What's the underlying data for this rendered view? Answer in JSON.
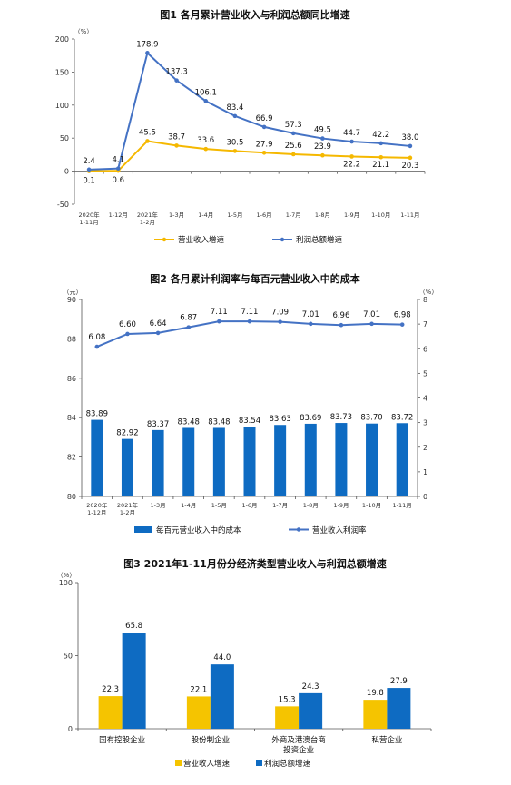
{
  "chart_data": [
    {
      "type": "line",
      "title": "图1  各月累计营业收入与利润总额同比增速",
      "unit": "（%）",
      "ylim": [
        -50,
        200
      ],
      "yticks": [
        "200",
        "150",
        "100",
        "50",
        "0",
        "-50"
      ],
      "categories": [
        [
          "2020年",
          "1-11月"
        ],
        [
          "1-12月"
        ],
        [
          "2021年",
          "1-2月"
        ],
        [
          "1-3月"
        ],
        [
          "1-4月"
        ],
        [
          "1-5月"
        ],
        [
          "1-6月"
        ],
        [
          "1-7月"
        ],
        [
          "1-8月"
        ],
        [
          "1-9月"
        ],
        [
          "1-10月"
        ],
        [
          "1-11月"
        ]
      ],
      "series": [
        {
          "name": "营业收入增速",
          "color": "#F5B800",
          "values": [
            0.1,
            0.6,
            45.5,
            38.7,
            33.6,
            30.5,
            27.9,
            25.6,
            23.9,
            22.2,
            21.1,
            20.3
          ],
          "labels": [
            "0.1",
            "0.6",
            "45.5",
            "38.7",
            "33.6",
            "30.5",
            "27.9",
            "25.6",
            "23.9",
            "22.2",
            "21.1",
            "20.3"
          ]
        },
        {
          "name": "利润总额增速",
          "color": "#4472C4",
          "values": [
            2.4,
            4.1,
            178.9,
            137.3,
            106.1,
            83.4,
            66.9,
            57.3,
            49.5,
            44.7,
            42.2,
            38.0
          ],
          "labels": [
            "2.4",
            "4.1",
            "178.9",
            "137.3",
            "106.1",
            "83.4",
            "66.9",
            "57.3",
            "49.5",
            "44.7",
            "42.2",
            "38.0"
          ]
        }
      ]
    },
    {
      "type": "bar+line",
      "title": "图2  各月累计利润率与每百元营业收入中的成本",
      "left_unit": "（元）",
      "right_unit": "（%）",
      "left_ylim": [
        80,
        90
      ],
      "left_yticks": [
        "90",
        "88",
        "86",
        "84",
        "82",
        "80"
      ],
      "right_ylim": [
        0,
        8
      ],
      "right_yticks": [
        "8",
        "7",
        "6",
        "5",
        "4",
        "3",
        "2",
        "1",
        "0"
      ],
      "categories": [
        [
          "2020年",
          "1-12月"
        ],
        [
          "2021年",
          "1-2月"
        ],
        [
          "1-3月"
        ],
        [
          "1-4月"
        ],
        [
          "1-5月"
        ],
        [
          "1-6月"
        ],
        [
          "1-7月"
        ],
        [
          "1-8月"
        ],
        [
          "1-9月"
        ],
        [
          "1-10月"
        ],
        [
          "1-11月"
        ]
      ],
      "bar_series": {
        "name": "每百元营业收入中的成本",
        "color": "#0E6BC2",
        "values": [
          83.89,
          82.92,
          83.37,
          83.48,
          83.48,
          83.54,
          83.63,
          83.69,
          83.73,
          83.7,
          83.72
        ],
        "labels": [
          "83.89",
          "82.92",
          "83.37",
          "83.48",
          "83.48",
          "83.54",
          "83.63",
          "83.69",
          "83.73",
          "83.70",
          "83.72"
        ]
      },
      "line_series": {
        "name": "营业收入利润率",
        "color": "#4472C4",
        "values": [
          6.08,
          6.6,
          6.64,
          6.87,
          7.11,
          7.11,
          7.09,
          7.01,
          6.96,
          7.01,
          6.98
        ],
        "labels": [
          "6.08",
          "6.60",
          "6.64",
          "6.87",
          "7.11",
          "7.11",
          "7.09",
          "7.01",
          "6.96",
          "7.01",
          "6.98"
        ]
      }
    },
    {
      "type": "bar",
      "title": "图3  2021年1-11月份分经济类型营业收入与利润总额增速",
      "unit": "（%）",
      "ylim": [
        0,
        100
      ],
      "yticks": [
        "100",
        "50",
        "0"
      ],
      "categories": [
        [
          "国有控股企业"
        ],
        [
          "股份制企业"
        ],
        [
          "外商及港澳台商",
          "投资企业"
        ],
        [
          "私营企业"
        ]
      ],
      "series": [
        {
          "name": "营业收入增速",
          "color": "#F5C400",
          "values": [
            22.3,
            22.1,
            15.3,
            19.8
          ],
          "labels": [
            "22.3",
            "22.1",
            "15.3",
            "19.8"
          ]
        },
        {
          "name": "利润总额增速",
          "color": "#0E6BC2",
          "values": [
            65.8,
            44.0,
            24.3,
            27.9
          ],
          "labels": [
            "65.8",
            "44.0",
            "24.3",
            "27.9"
          ]
        }
      ]
    }
  ]
}
